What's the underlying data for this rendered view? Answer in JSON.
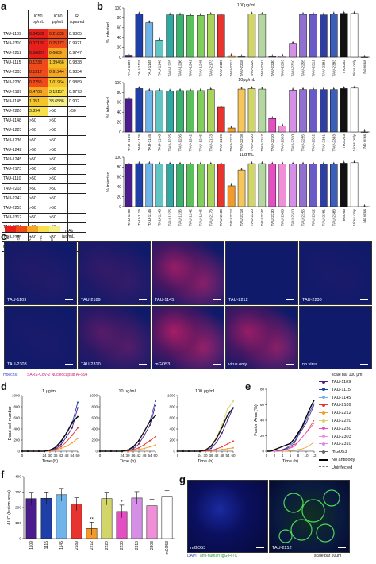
{
  "panels": {
    "a": "a",
    "b": "b",
    "c": "c",
    "d": "d",
    "e": "e",
    "f": "f",
    "g": "g"
  },
  "colors": {
    "TAU-1109": "#4a1c8c",
    "TAU-1115": "#1f3fa8",
    "TAU-1145": "#6fb3e8",
    "TAU-1148": "#5fc6c4",
    "TAU-1225": "#2ea8a0",
    "TAU-1236": "#38b26d",
    "TAU-1242": "#5cc05a",
    "TAU-1245": "#7fcf5a",
    "TAU-2173": "#a8d45a",
    "TAU-2189": "#e8342f",
    "TAU-2212": "#f39a2b",
    "TAU-2218": "#f5c65a",
    "TAU-2220": "#d2d56a",
    "TAU-2247": "#b4d6a0",
    "TAU-2230": "#e64fc4",
    "TAU-2303": "#f08fd8",
    "TAU-2310": "#d58fe6",
    "TAU-2255": "#8f6fd0",
    "TAU-2312": "#6a5ac8",
    "TAU-2381": "#2e3fa0",
    "TAU-2383": "#3b5fb8",
    "mGO53": "#111111",
    "Virus only": "#ffffff",
    "No virus": "#ffffff"
  },
  "table": {
    "headers": [
      "",
      "IC50\nμg/mL",
      "IC80\nμg/mL",
      "R\nsquared"
    ],
    "rows": [
      [
        "TAU-1109",
        "0.04502",
        "0.21835",
        "0.9805"
      ],
      [
        "TAU-2310",
        "0.07169",
        "0.25172",
        "0.9921"
      ],
      [
        "TAU-2212",
        "0.06867",
        "0.6689",
        "0.9747"
      ],
      [
        "TAU-1115",
        "0.1233",
        "1.39466",
        "0.9838"
      ],
      [
        "TAU-2303",
        "0.1317",
        "0.91944",
        "0.9834"
      ],
      [
        "TAU-2230",
        "0.2255",
        "1.01964",
        "0.9889"
      ],
      [
        "TAU-2189",
        "0.4706",
        "3.13157",
        "0.9773"
      ],
      [
        "TAU-1145",
        "1.051",
        "38.6586",
        "0.902"
      ],
      [
        "TAU-2220",
        "3.894",
        ">50",
        ">50"
      ],
      [
        "TAU-1148",
        ">50",
        ">50",
        ""
      ],
      [
        "TAU-1225",
        ">50",
        ">50",
        ""
      ],
      [
        "TAU-1236",
        ">50",
        ">50",
        ""
      ],
      [
        "TAU-1242",
        ">50",
        ">50",
        ""
      ],
      [
        "TAU-1245",
        ">50",
        ">50",
        ""
      ],
      [
        "TAU-2173",
        ">50",
        ">50",
        ""
      ],
      [
        "TAU-1110",
        ">50",
        ">50",
        ""
      ],
      [
        "TAU-2218",
        ">50",
        ">50",
        ""
      ],
      [
        "TAU-2247",
        ">50",
        ">50",
        ""
      ],
      [
        "TAU-2255",
        ">50",
        ">50",
        ""
      ],
      [
        "TAU-2312",
        ">50",
        ">50",
        ""
      ],
      [
        "TAU-2381",
        ">50",
        ">50",
        ""
      ],
      [
        "TAU-2383",
        ">50",
        ">50",
        ""
      ],
      [
        "mGO53",
        ">50",
        ">50",
        ""
      ]
    ],
    "cell_colors": [
      [
        "#e8201c",
        "#f04a1a",
        ""
      ],
      [
        "#e8201c",
        "#f04a1a",
        ""
      ],
      [
        "#e8201c",
        "#f5a623",
        ""
      ],
      [
        "#f04a1a",
        "#f5c42a",
        ""
      ],
      [
        "#f04a1a",
        "#f5a623",
        ""
      ],
      [
        "#f04a1a",
        "#f5c42a",
        ""
      ],
      [
        "#f5a623",
        "#f7e04a",
        ""
      ],
      [
        "#f5c42a",
        "#f7ef8a",
        ""
      ],
      [
        "#f7e04a",
        "",
        ""
      ]
    ],
    "scale_ticks": [
      "<0.1",
      "0.1-1",
      "1-10",
      "10-50",
      ">50"
    ],
    "scale_colors": [
      "#e8201c",
      "#f04a1a",
      "#f5a623",
      "#f7e04a",
      "#f7ef8a"
    ],
    "scale_label": "mAb\n(μg/mL)"
  },
  "chart_data": [
    {
      "type": "bar",
      "panel": "b",
      "title": "100μg/mL",
      "ylabel": "% infected",
      "ylim": [
        0,
        100
      ],
      "yticks": [
        "0",
        "20",
        "40",
        "60",
        "80",
        "100"
      ],
      "categories": [
        "TAU-1109",
        "TAU-1115",
        "TAU-1145",
        "TAU-1148",
        "TAU-1225",
        "TAU-1236",
        "TAU-1242",
        "TAU-1245",
        "TAU-2173",
        "TAU-2189",
        "TAU-2212",
        "TAU-2218",
        "TAU-2220",
        "TAU-2247",
        "TAU-2230",
        "TAU-2303",
        "TAU-2310",
        "TAU-2255",
        "TAU-2312",
        "TAU-2381",
        "TAU-2383",
        "mGO53",
        "Virus only",
        "No virus"
      ],
      "values": [
        4,
        88,
        70,
        35,
        86,
        86,
        85,
        85,
        87,
        86,
        3,
        1,
        88,
        87,
        1,
        2,
        28,
        87,
        87,
        86,
        88,
        89,
        89,
        0
      ]
    },
    {
      "type": "bar",
      "panel": "b",
      "title": "10μg/mL",
      "ylabel": "% infected",
      "ylim": [
        0,
        100
      ],
      "yticks": [
        "0",
        "20",
        "40",
        "60",
        "80",
        "100"
      ],
      "categories": [
        "TAU-1109",
        "TAU-1115",
        "TAU-1145",
        "TAU-1148",
        "TAU-1225",
        "TAU-1236",
        "TAU-1242",
        "TAU-1245",
        "TAU-2173",
        "TAU-2189",
        "TAU-2212",
        "TAU-2218",
        "TAU-2220",
        "TAU-2247",
        "TAU-2230",
        "TAU-2303",
        "TAU-2310",
        "TAU-2255",
        "TAU-2312",
        "TAU-2381",
        "TAU-2383",
        "mGO53",
        "Virus only",
        "No virus"
      ],
      "values": [
        68,
        88,
        84,
        84,
        83,
        84,
        84,
        84,
        86,
        50,
        8,
        87,
        88,
        87,
        27,
        12,
        85,
        86,
        86,
        86,
        86,
        88,
        89,
        0
      ]
    },
    {
      "type": "bar",
      "panel": "b",
      "title": "1μg/mL",
      "ylabel": "% infected",
      "ylim": [
        0,
        100
      ],
      "yticks": [
        "0",
        "20",
        "40",
        "60",
        "80",
        "100"
      ],
      "categories": [
        "TAU-1109",
        "TAU-1115",
        "TAU-1145",
        "TAU-1148",
        "TAU-1225",
        "TAU-1236",
        "TAU-1242",
        "TAU-1245",
        "TAU-2173",
        "TAU-2189",
        "TAU-2212",
        "TAU-2218",
        "TAU-2220",
        "TAU-2247",
        "TAU-2230",
        "TAU-2303",
        "TAU-2310",
        "TAU-2255",
        "TAU-2312",
        "TAU-2381",
        "TAU-2383",
        "mGO53",
        "Virus only",
        "No virus"
      ],
      "values": [
        86,
        87,
        87,
        86,
        86,
        86,
        86,
        86,
        86,
        86,
        42,
        74,
        87,
        87,
        86,
        86,
        86,
        86,
        86,
        86,
        86,
        88,
        89,
        0
      ]
    },
    {
      "type": "line",
      "panel": "d",
      "title": "1 μg/mL",
      "ylabel": "Dead cell number",
      "xlabel": "Time (h)",
      "x": [
        0,
        6,
        12,
        18,
        24,
        30,
        36,
        42,
        48,
        54,
        60
      ],
      "xticks": [
        "0",
        "24",
        "30",
        "36",
        "42",
        "48",
        "54",
        "60"
      ],
      "ylim": [
        0,
        1000
      ],
      "yticks": [
        "0",
        "200",
        "400",
        "600",
        "800",
        "1000"
      ],
      "series": [
        {
          "name": "TAU-1109",
          "values": [
            0,
            0,
            0,
            0,
            0,
            10,
            40,
            120,
            260,
            420,
            780
          ]
        },
        {
          "name": "TAU-1115",
          "values": [
            0,
            0,
            0,
            0,
            0,
            15,
            60,
            160,
            320,
            500,
            880
          ]
        },
        {
          "name": "TAU-2212",
          "values": [
            0,
            0,
            0,
            0,
            0,
            5,
            20,
            50,
            90,
            150,
            230
          ]
        },
        {
          "name": "TAU-2189",
          "values": [
            0,
            0,
            0,
            0,
            0,
            10,
            30,
            80,
            170,
            290,
            420
          ]
        },
        {
          "name": "mGO53",
          "values": [
            0,
            0,
            0,
            0,
            0,
            20,
            70,
            180,
            330,
            520,
            620
          ]
        }
      ]
    },
    {
      "type": "line",
      "panel": "d",
      "title": "10 μg/mL",
      "ylabel": "",
      "xlabel": "Time (h)",
      "x": [
        0,
        6,
        12,
        18,
        24,
        30,
        36,
        42,
        48,
        54,
        60
      ],
      "xticks": [
        "0",
        "24",
        "30",
        "36",
        "42",
        "48",
        "54",
        "60"
      ],
      "ylim": [
        0,
        1000
      ],
      "yticks": [
        "0",
        "200",
        "400",
        "600",
        "800",
        "1000"
      ],
      "series": [
        {
          "name": "TAU-1109",
          "values": [
            0,
            0,
            0,
            0,
            0,
            10,
            40,
            130,
            290,
            470,
            820
          ]
        },
        {
          "name": "TAU-1115",
          "values": [
            0,
            0,
            0,
            0,
            0,
            20,
            70,
            190,
            360,
            540,
            900
          ]
        },
        {
          "name": "TAU-2212",
          "values": [
            0,
            0,
            0,
            0,
            0,
            5,
            15,
            30,
            50,
            80,
            110
          ]
        },
        {
          "name": "TAU-2189",
          "values": [
            0,
            0,
            0,
            0,
            0,
            8,
            25,
            60,
            120,
            190,
            260
          ]
        },
        {
          "name": "mGO53",
          "values": [
            0,
            0,
            0,
            0,
            0,
            20,
            80,
            190,
            360,
            540,
            640
          ]
        }
      ]
    },
    {
      "type": "line",
      "panel": "d",
      "title": "100 μg/mL",
      "ylabel": "",
      "xlabel": "Time (h)",
      "x": [
        0,
        6,
        12,
        18,
        24,
        30,
        36,
        42,
        48,
        54,
        60
      ],
      "xticks": [
        "0",
        "24",
        "30",
        "36",
        "42",
        "48",
        "54",
        "60"
      ],
      "ylim": [
        0,
        1000
      ],
      "yticks": [
        "0",
        "200",
        "400",
        "600",
        "800",
        "1000"
      ],
      "series": [
        {
          "name": "TAU-1109",
          "values": [
            0,
            0,
            0,
            0,
            0,
            10,
            50,
            160,
            330,
            560,
            780
          ]
        },
        {
          "name": "TAU-2220",
          "values": [
            0,
            0,
            0,
            0,
            0,
            20,
            90,
            250,
            480,
            760,
            900
          ]
        },
        {
          "name": "TAU-2212",
          "values": [
            0,
            0,
            0,
            0,
            0,
            5,
            10,
            20,
            30,
            45,
            60
          ]
        },
        {
          "name": "TAU-2189",
          "values": [
            0,
            0,
            0,
            0,
            0,
            5,
            15,
            40,
            80,
            130,
            180
          ]
        },
        {
          "name": "mGO53",
          "values": [
            0,
            0,
            0,
            0,
            0,
            20,
            90,
            230,
            430,
            650,
            780
          ]
        }
      ]
    },
    {
      "type": "line",
      "panel": "e",
      "ylabel": "Fusion Area (%)",
      "xlabel": "Time (h)",
      "x": [
        0,
        1,
        2,
        3,
        4,
        5,
        6,
        7,
        8,
        9,
        10,
        11,
        12
      ],
      "xticks": [
        "0",
        "2",
        "4",
        "6",
        "8",
        "10",
        "12"
      ],
      "ylim": [
        0,
        80
      ],
      "yticks": [
        "0",
        "20",
        "40",
        "60",
        "80"
      ],
      "series": [
        {
          "name": "TAU-1109",
          "values": [
            0,
            0,
            0,
            0,
            2,
            3,
            6,
            10,
            20,
            28,
            36,
            48,
            60
          ]
        },
        {
          "name": "TAU-1115",
          "values": [
            0,
            0,
            0,
            1,
            2,
            4,
            8,
            12,
            22,
            30,
            40,
            52,
            62
          ]
        },
        {
          "name": "TAU-2189",
          "values": [
            0,
            0,
            0,
            0,
            1,
            2,
            4,
            8,
            12,
            18,
            24,
            32,
            40
          ]
        },
        {
          "name": "TAU-2212",
          "values": [
            0,
            0,
            0,
            0,
            0,
            0,
            1,
            1,
            2,
            3,
            5,
            8,
            12
          ]
        },
        {
          "name": "TAU-2230",
          "values": [
            0,
            0,
            0,
            0,
            1,
            2,
            4,
            6,
            12,
            18,
            24,
            30,
            36
          ]
        },
        {
          "name": "No antibody",
          "values": [
            0,
            0,
            2,
            4,
            6,
            8,
            10,
            16,
            24,
            32,
            44,
            56,
            66
          ]
        }
      ]
    },
    {
      "type": "bar",
      "panel": "f",
      "ylabel": "AUC (fusion area)",
      "ylim": [
        0,
        400
      ],
      "yticks": [
        "0",
        "100",
        "200",
        "300",
        "400"
      ],
      "categories": [
        "1109",
        "1115",
        "1145",
        "2189",
        "2212",
        "2220",
        "2230",
        "2310",
        "2303",
        "mGO53"
      ],
      "values": [
        258,
        260,
        283,
        222,
        65,
        258,
        175,
        262,
        212,
        268
      ],
      "annotations": [
        "",
        "",
        "",
        "",
        "**",
        "",
        "*",
        "",
        "",
        ""
      ]
    }
  ],
  "panel_b_legend": {
    "title_100": "100μg/mL",
    "title_10": "10μg/mL",
    "title_1": "1μg/mL"
  },
  "panel_c": {
    "tiles_row1": [
      "TAU-1109",
      "TAU-2189",
      "TAU-1145",
      "TAU-2212",
      "TAU-2230"
    ],
    "tiles_row2": [
      "TAU-2303",
      "TAU-2310",
      "mGO53",
      "virus only",
      "no virus"
    ],
    "legend_hoechst": "Hoechst",
    "legend_np": "SARS-CoV-2 Nucleocapsid AF594",
    "scalebar": "scale bar 100 μm"
  },
  "panel_e_legend": [
    {
      "name": "TAU-1109",
      "color": "#4a1c8c"
    },
    {
      "name": "TAU-1115",
      "color": "#1f3fa8"
    },
    {
      "name": "TAU-1145",
      "color": "#6fb3e8"
    },
    {
      "name": "TAU-2189",
      "color": "#e8342f"
    },
    {
      "name": "TAU-2212",
      "color": "#f39a2b"
    },
    {
      "name": "TAU-2220",
      "color": "#d2d56a"
    },
    {
      "name": "TAU-2230",
      "color": "#e64fc4"
    },
    {
      "name": "TAU-2303",
      "color": "#f08fd8"
    },
    {
      "name": "TAU-2310",
      "color": "#d58fe6"
    },
    {
      "name": "mGO53",
      "color": "#666666"
    },
    {
      "name": "No antibody",
      "color": "#000000"
    },
    {
      "name": "Uninfected",
      "color": "#999999"
    }
  ],
  "panel_g": {
    "tile_left": "mGO53",
    "tile_right": "TAU-2212",
    "legend_dapi": "DAPI",
    "legend_fitc": "anti-human IgG-FITC",
    "scalebar": "scale bar 50μm"
  }
}
